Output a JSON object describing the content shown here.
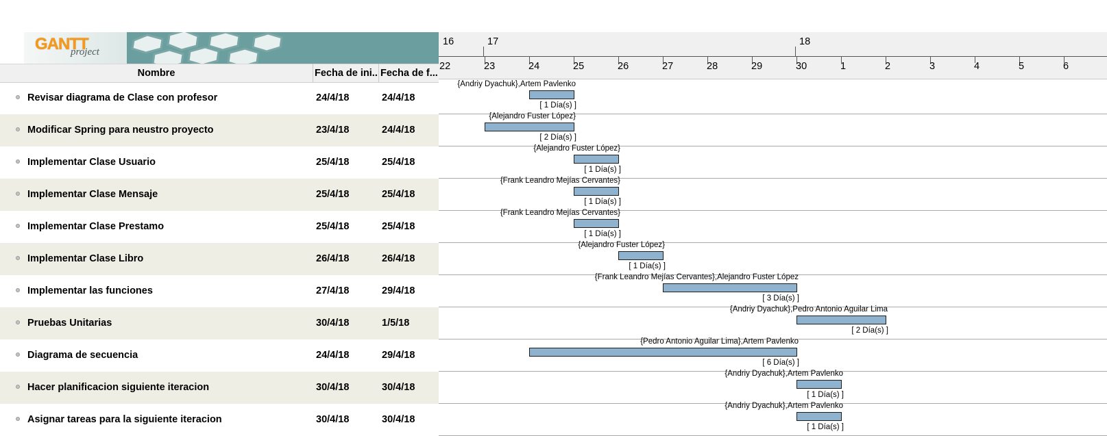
{
  "logo": {
    "main": "GANTT",
    "sub": "project"
  },
  "columns": {
    "name": "Nombre",
    "start": "Fecha de ini...",
    "end": "Fecha de f..."
  },
  "timeline": {
    "weeks": [
      "16",
      "17",
      "18"
    ],
    "days": [
      "22",
      "23",
      "24",
      "25",
      "26",
      "27",
      "28",
      "29",
      "30",
      "1",
      "2",
      "3",
      "4",
      "5",
      "6"
    ]
  },
  "tasks": [
    {
      "name": "Revisar diagrama de Clase con profesor",
      "start": "24/4/18",
      "end": "24/4/18",
      "resources": "{Andriy Dyachuk},Artem Pavlenko",
      "duration": "[ 1 Día(s) ]",
      "start_day": 2,
      "days": 1
    },
    {
      "name": "Modificar Spring para neustro proyecto",
      "start": "23/4/18",
      "end": "24/4/18",
      "resources": "{Alejandro Fuster López}",
      "duration": "[ 2 Día(s) ]",
      "start_day": 1,
      "days": 2
    },
    {
      "name": "Implementar Clase Usuario",
      "start": "25/4/18",
      "end": "25/4/18",
      "resources": "{Alejandro Fuster López}",
      "duration": "[ 1 Día(s) ]",
      "start_day": 3,
      "days": 1
    },
    {
      "name": "Implementar Clase Mensaje",
      "start": "25/4/18",
      "end": "25/4/18",
      "resources": "{Frank Leandro Mejías Cervantes}",
      "duration": "[ 1 Día(s) ]",
      "start_day": 3,
      "days": 1
    },
    {
      "name": "Implementar Clase Prestamo",
      "start": "25/4/18",
      "end": "25/4/18",
      "resources": "{Frank Leandro Mejías Cervantes}",
      "duration": "[ 1 Día(s) ]",
      "start_day": 3,
      "days": 1
    },
    {
      "name": "Implementar Clase Libro",
      "start": "26/4/18",
      "end": "26/4/18",
      "resources": "{Alejandro Fuster López}",
      "duration": "[ 1 Día(s) ]",
      "start_day": 4,
      "days": 1
    },
    {
      "name": "Implementar las funciones",
      "start": "27/4/18",
      "end": "29/4/18",
      "resources": "{Frank Leandro Mejías Cervantes},Alejandro Fuster López",
      "duration": "[ 3 Día(s) ]",
      "start_day": 5,
      "days": 3
    },
    {
      "name": "Pruebas Unitarias",
      "start": "30/4/18",
      "end": "1/5/18",
      "resources": "{Andriy Dyachuk},Pedro Antonio Aguilar Lima",
      "duration": "[ 2 Día(s) ]",
      "start_day": 8,
      "days": 2
    },
    {
      "name": "Diagrama de secuencia",
      "start": "24/4/18",
      "end": "29/4/18",
      "resources": "{Pedro Antonio Aguilar Lima},Artem Pavlenko",
      "duration": "[ 6 Día(s) ]",
      "start_day": 2,
      "days": 6
    },
    {
      "name": "Hacer planificacion siguiente iteracion",
      "start": "30/4/18",
      "end": "30/4/18",
      "resources": "{Andriy Dyachuk},Artem Pavlenko",
      "duration": "[ 1 Día(s) ]",
      "start_day": 8,
      "days": 1
    },
    {
      "name": "Asignar tareas para la siguiente iteracion",
      "start": "30/4/18",
      "end": "30/4/18",
      "resources": "{Andriy Dyachuk},Artem Pavlenko",
      "duration": "[ 1 Día(s) ]",
      "start_day": 8,
      "days": 1
    }
  ],
  "colors": {
    "bar": "#8fb3ce",
    "row_alt": "#eeeee4",
    "banner": "#6b9e9e",
    "logo": "#f39a1e"
  }
}
